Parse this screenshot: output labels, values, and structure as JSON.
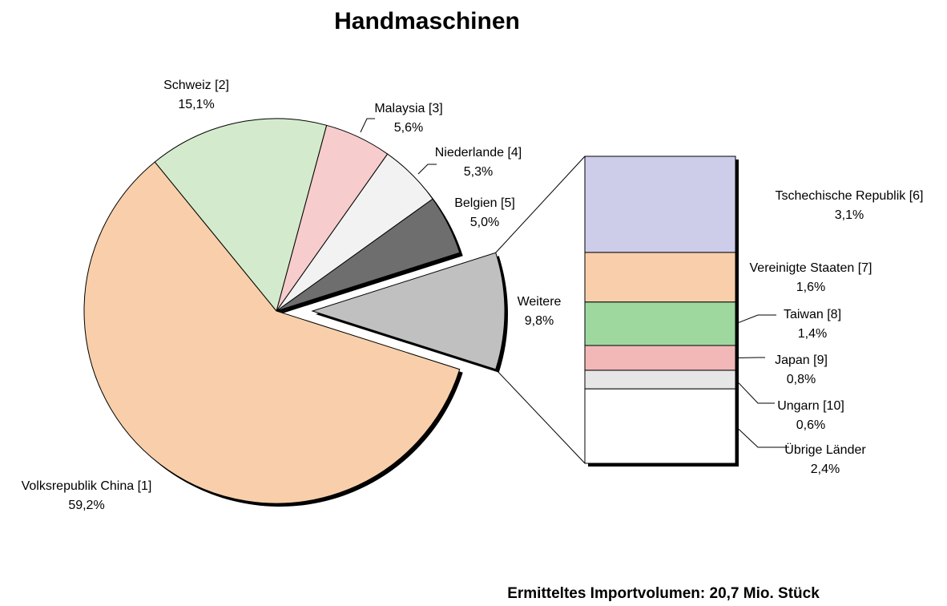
{
  "chart_data": {
    "type": "pie",
    "title": "Handmaschinen",
    "categories": [
      "Belgien [5]",
      "Niederlande [4]",
      "Malaysia [3]",
      "Schweiz [2]",
      "Volksrepublik China [1]",
      "Weitere"
    ],
    "values": [
      5.0,
      5.3,
      5.6,
      15.1,
      59.2,
      9.8
    ],
    "value_labels": [
      "5,0%",
      "5,3%",
      "5,6%",
      "15,1%",
      "59,2%",
      "9,8%"
    ],
    "colors": [
      "#6e6e6e",
      "#f2f2f2",
      "#f6cccc",
      "#d3ebcc",
      "#f8cfaa",
      "#c0c0c0"
    ],
    "breakdown": {
      "type": "bar",
      "categories": [
        "Tschechische Republik [6]",
        "Vereinigte Staaten [7]",
        "Taiwan [8]",
        "Japan [9]",
        "Ungarn [10]",
        "Übrige Länder"
      ],
      "values": [
        3.1,
        1.6,
        1.4,
        0.8,
        0.6,
        2.4
      ],
      "value_labels": [
        "3,1%",
        "1,6%",
        "1,4%",
        "0,8%",
        "0,6%",
        "2,4%"
      ],
      "colors": [
        "#cdcdea",
        "#f8cfaa",
        "#9fd89f",
        "#f2b8b8",
        "#e6e6e6",
        "#ffffff"
      ]
    },
    "footnote": "Ermitteltes Importvolumen: 20,7 Mio. Stück"
  }
}
